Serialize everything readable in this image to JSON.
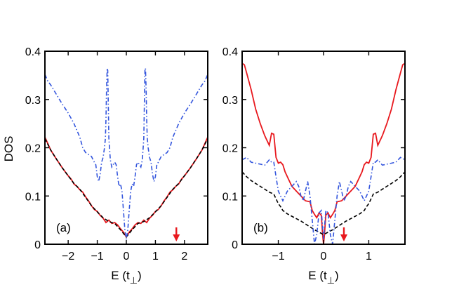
{
  "chart_data": [
    {
      "type": "line",
      "panel_label": "(a)",
      "ylabel": "DOS",
      "xlabel": "E (t",
      "xlabel_sub": "⊥",
      "xlabel_close": ")",
      "xlim": [
        -2.8,
        2.8
      ],
      "ylim": [
        0,
        0.4
      ],
      "xticks": [
        -2,
        -1,
        0,
        1,
        2
      ],
      "xtick_labels": [
        "−2",
        "−1",
        "0",
        "1",
        "2"
      ],
      "yticks": [
        0,
        0.1,
        0.2,
        0.3,
        0.4
      ],
      "ytick_labels": [
        "0",
        "0.1",
        "0.2",
        "0.3",
        "0.4"
      ],
      "arrow_x": 1.72,
      "series": [
        {
          "name": "solid-red",
          "color": "#e8191e",
          "style": "solid",
          "x": [
            0,
            0.05,
            0.1,
            0.2,
            0.3,
            0.4,
            0.5,
            0.6,
            0.7,
            0.8,
            0.9,
            1.0,
            1.1,
            1.2,
            1.3,
            1.4,
            1.5,
            1.6,
            1.7,
            1.8,
            1.9,
            2.0,
            2.2,
            2.4,
            2.6,
            2.8
          ],
          "y": [
            0.015,
            0.02,
            0.025,
            0.032,
            0.04,
            0.045,
            0.043,
            0.05,
            0.045,
            0.054,
            0.06,
            0.068,
            0.072,
            0.08,
            0.09,
            0.098,
            0.108,
            0.113,
            0.12,
            0.125,
            0.135,
            0.142,
            0.158,
            0.176,
            0.195,
            0.222
          ]
        },
        {
          "name": "dashed-black",
          "color": "#000000",
          "style": "dashed",
          "x": [
            0,
            0.2,
            0.4,
            0.6,
            0.8,
            1.0,
            1.2,
            1.4,
            1.6,
            1.8,
            2.0,
            2.2,
            2.4,
            2.6,
            2.8
          ],
          "y": [
            0.015,
            0.03,
            0.043,
            0.047,
            0.055,
            0.067,
            0.08,
            0.097,
            0.114,
            0.126,
            0.142,
            0.158,
            0.176,
            0.195,
            0.219
          ]
        },
        {
          "name": "dashdot-blue",
          "color": "#3355dd",
          "style": "dashdot",
          "x": [
            0,
            0.05,
            0.1,
            0.15,
            0.2,
            0.25,
            0.3,
            0.35,
            0.4,
            0.5,
            0.55,
            0.6,
            0.62,
            0.64,
            0.66,
            0.68,
            0.7,
            0.72,
            0.75,
            0.8,
            0.85,
            0.9,
            0.95,
            1.0,
            1.05,
            1.1,
            1.2,
            1.3,
            1.4,
            1.5,
            1.6,
            1.8,
            2.0,
            2.2,
            2.4,
            2.6,
            2.7,
            2.8
          ],
          "y": [
            0.01,
            0.03,
            0.07,
            0.11,
            0.125,
            0.12,
            0.14,
            0.165,
            0.17,
            0.16,
            0.175,
            0.22,
            0.29,
            0.36,
            0.365,
            0.32,
            0.26,
            0.22,
            0.2,
            0.18,
            0.17,
            0.145,
            0.13,
            0.14,
            0.165,
            0.17,
            0.182,
            0.186,
            0.19,
            0.2,
            0.222,
            0.25,
            0.272,
            0.29,
            0.31,
            0.33,
            0.338,
            0.352
          ]
        }
      ]
    },
    {
      "type": "line",
      "panel_label": "(b)",
      "xlabel": "E (t",
      "xlabel_sub": "⊥",
      "xlabel_close": ")",
      "xlim": [
        -1.8,
        1.8
      ],
      "ylim": [
        0,
        0.4
      ],
      "xticks": [
        -1,
        0,
        1
      ],
      "xtick_labels": [
        "−1",
        "0",
        "1"
      ],
      "yticks": [
        0,
        0.1,
        0.2,
        0.3,
        0.4
      ],
      "ytick_labels": [
        "0",
        "0.1",
        "0.2",
        "0.3",
        "0.4"
      ],
      "arrow_x": 0.45,
      "series": [
        {
          "name": "solid-red",
          "color": "#e8191e",
          "style": "solid",
          "x": [
            0,
            0.02,
            0.05,
            0.1,
            0.15,
            0.2,
            0.25,
            0.3,
            0.4,
            0.5,
            0.6,
            0.7,
            0.8,
            0.85,
            0.9,
            0.95,
            1.0,
            1.05,
            1.1,
            1.15,
            1.2,
            1.3,
            1.4,
            1.5,
            1.6,
            1.7,
            1.75,
            1.8
          ],
          "y": [
            0.0,
            0.02,
            0.06,
            0.065,
            0.055,
            0.062,
            0.07,
            0.088,
            0.09,
            0.1,
            0.11,
            0.12,
            0.14,
            0.15,
            0.165,
            0.17,
            0.168,
            0.18,
            0.228,
            0.23,
            0.205,
            0.225,
            0.25,
            0.28,
            0.32,
            0.355,
            0.372,
            0.375
          ]
        },
        {
          "name": "dashed-black",
          "color": "#000000",
          "style": "dashed",
          "x": [
            0,
            0.1,
            0.2,
            0.3,
            0.4,
            0.5,
            0.6,
            0.8,
            0.9,
            0.95,
            1.0,
            1.1,
            1.2,
            1.3,
            1.4,
            1.5,
            1.6,
            1.7,
            1.8
          ],
          "y": [
            0.02,
            0.025,
            0.03,
            0.036,
            0.042,
            0.048,
            0.053,
            0.063,
            0.07,
            0.078,
            0.084,
            0.104,
            0.108,
            0.114,
            0.12,
            0.126,
            0.132,
            0.14,
            0.15
          ]
        },
        {
          "name": "dashdot-blue",
          "color": "#3355dd",
          "style": "dashdot",
          "x": [
            0,
            0.05,
            0.1,
            0.15,
            0.2,
            0.25,
            0.3,
            0.35,
            0.4,
            0.45,
            0.5,
            0.55,
            0.6,
            0.7,
            0.8,
            0.9,
            1.0,
            1.05,
            1.1,
            1.15,
            1.2,
            1.3,
            1.4,
            1.5,
            1.6,
            1.7,
            1.8
          ],
          "y": [
            0.01,
            0.07,
            0.065,
            0.02,
            0.0,
            0.05,
            0.1,
            0.13,
            0.11,
            0.09,
            0.1,
            0.12,
            0.13,
            0.12,
            0.11,
            0.09,
            0.11,
            0.14,
            0.17,
            0.17,
            0.175,
            0.164,
            0.166,
            0.168,
            0.17,
            0.18,
            0.175
          ]
        }
      ]
    }
  ]
}
